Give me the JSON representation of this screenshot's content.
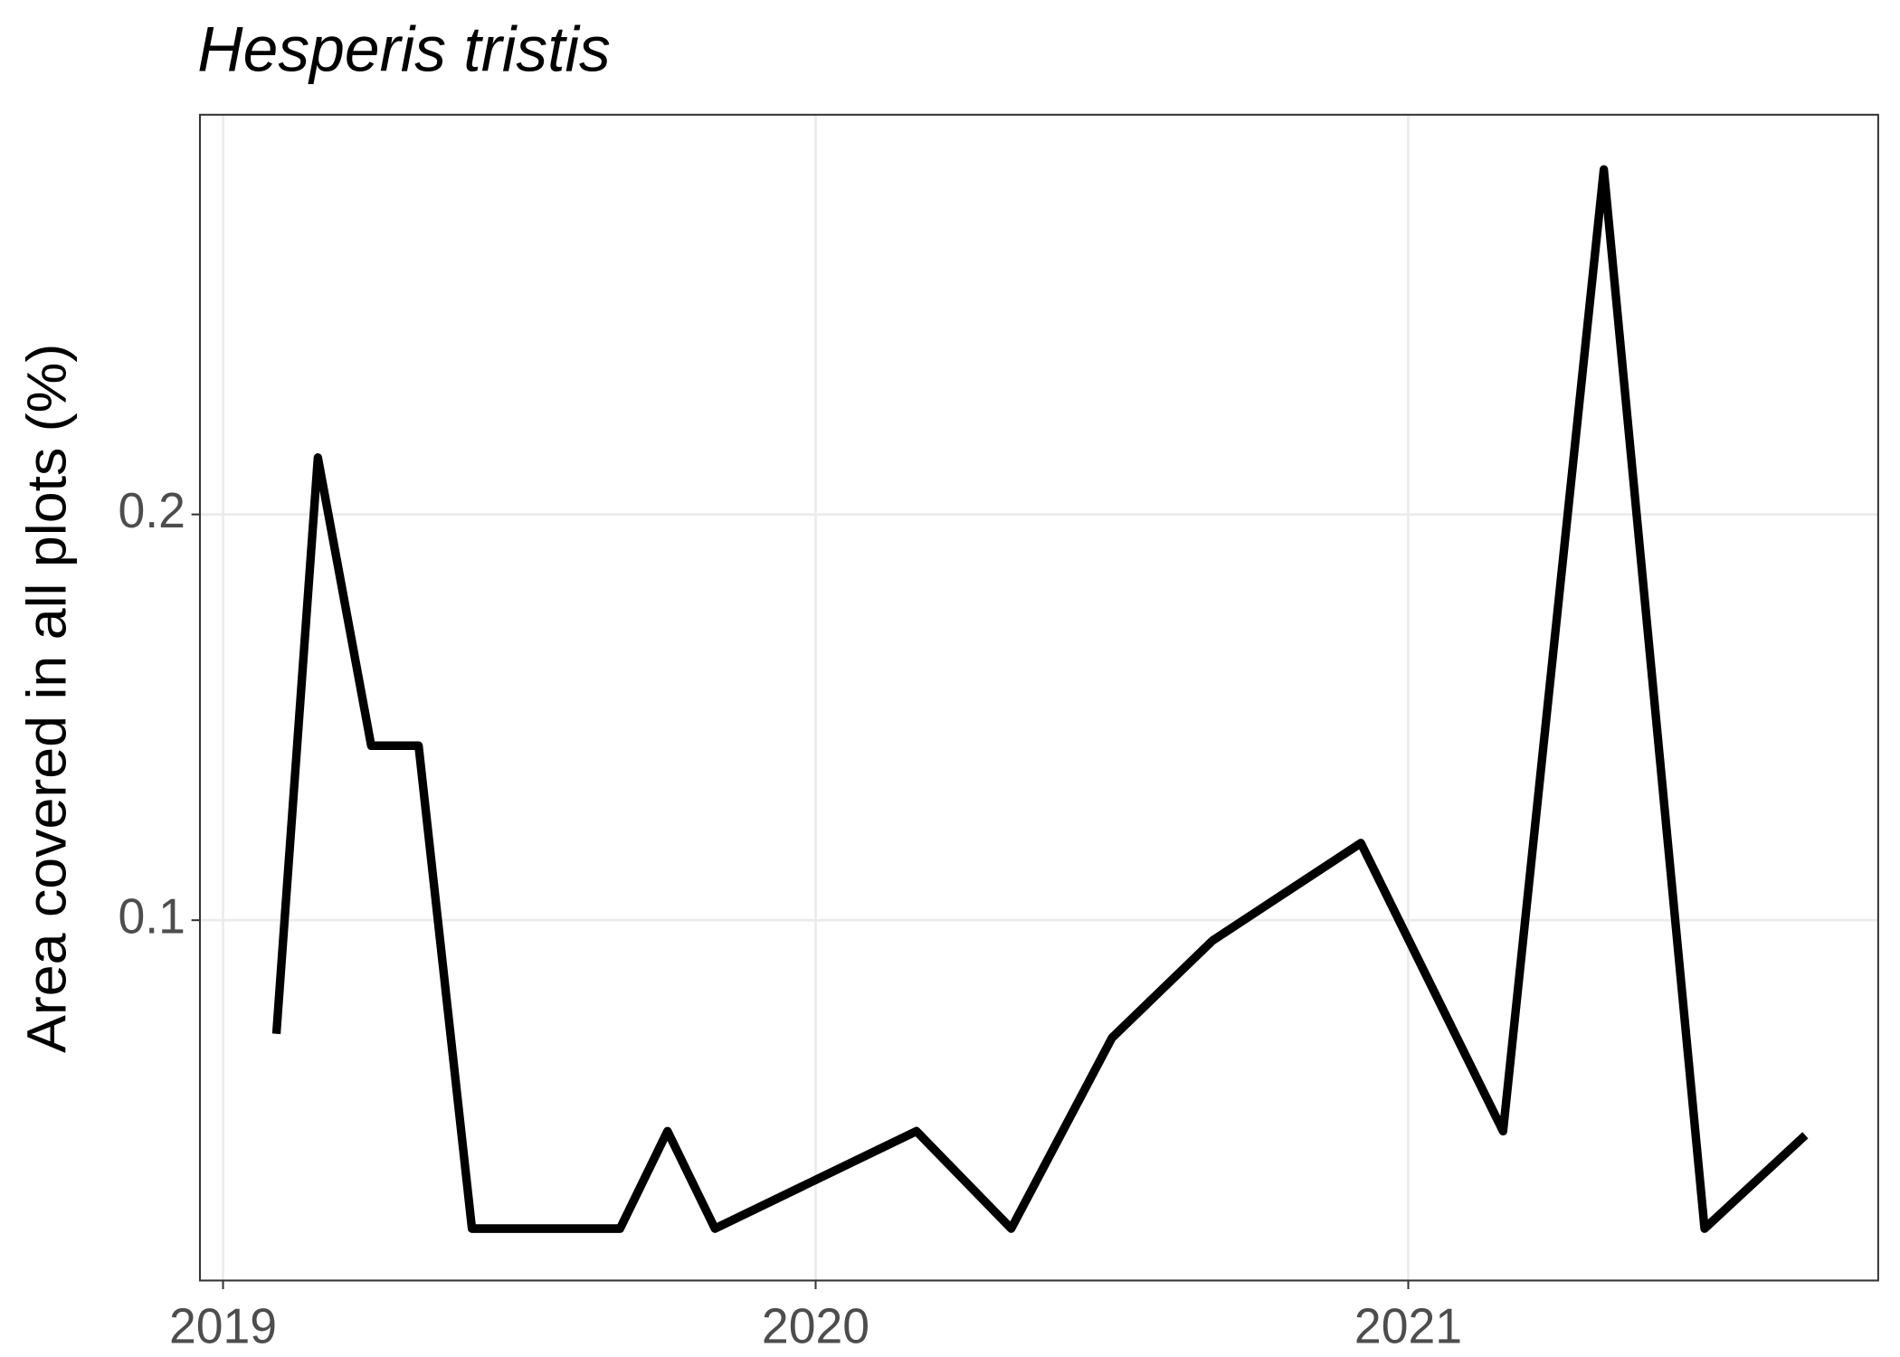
{
  "chart_data": {
    "type": "line",
    "title": "Hesperis tristis",
    "y_label": "Area covered in all plots (%)",
    "x": [
      2019.09,
      2019.16,
      2019.25,
      2019.33,
      2019.42,
      2019.67,
      2019.75,
      2019.83,
      2020.17,
      2020.33,
      2020.5,
      2020.67,
      2020.92,
      2021.16,
      2021.33,
      2021.5,
      2021.67
    ],
    "series": [
      {
        "color": "#000000",
        "values": [
          0.072,
          0.214,
          0.143,
          0.143,
          0.024,
          0.024,
          0.048,
          0.024,
          0.048,
          0.024,
          0.071,
          0.095,
          0.119,
          0.048,
          0.285,
          0.024,
          0.047
        ]
      }
    ],
    "xlim": [
      2018.961,
      2021.793
    ],
    "xticks": [
      2019,
      2020,
      2021
    ],
    "ylim": [
      0.0112,
      0.2985
    ],
    "yticks": [
      0.1,
      0.2
    ],
    "grid": true
  }
}
